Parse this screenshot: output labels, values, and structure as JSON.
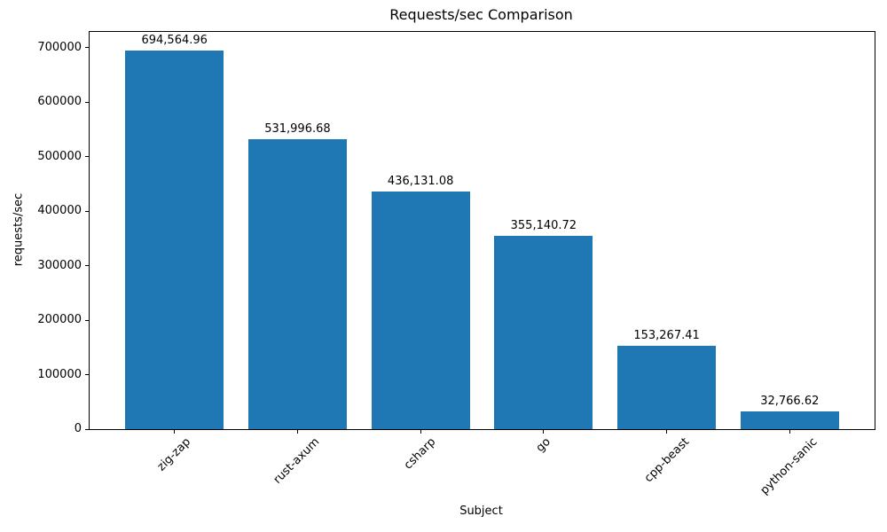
{
  "chart_data": {
    "type": "bar",
    "title": "Requests/sec Comparison",
    "xlabel": "Subject",
    "ylabel": "requests/sec",
    "categories": [
      "zig-zap",
      "rust-axum",
      "csharp",
      "go",
      "cpp-beast",
      "python-sanic"
    ],
    "values": [
      694564.96,
      531996.68,
      436131.08,
      355140.72,
      153267.41,
      32766.62
    ],
    "value_labels": [
      "694,564.96",
      "531,996.68",
      "436,131.08",
      "355,140.72",
      "153,267.41",
      "32,766.62"
    ],
    "yticks": [
      0,
      100000,
      200000,
      300000,
      400000,
      500000,
      600000,
      700000
    ],
    "ylim": [
      0,
      729293
    ],
    "bar_color": "#1f77b4",
    "axis_color": "#000000",
    "background_color": "#ffffff",
    "grid": false,
    "legend_position": "none",
    "xtick_rotation_deg": 45,
    "bar_width_fraction": 0.8
  }
}
